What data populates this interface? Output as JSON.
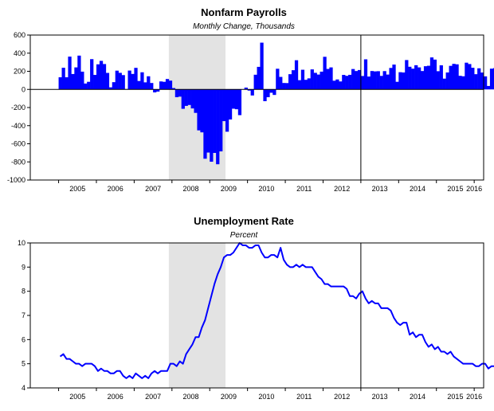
{
  "chart_data": [
    {
      "type": "bar",
      "title": "Nonfarm Payrolls",
      "subtitle": "Monthly Change, Thousands",
      "colors": {
        "bar": "#0000ff",
        "recession": "#e3e3e3",
        "axis": "#000000"
      },
      "x_start": "2005-01",
      "xlim": [
        2004.25,
        2016.25
      ],
      "ylim": [
        -1000,
        600
      ],
      "y_ticks": [
        600,
        400,
        200,
        0,
        -200,
        -400,
        -600,
        -800,
        -1000
      ],
      "x_tick_labels": [
        "2005",
        "2006",
        "2007",
        "2008",
        "2009",
        "2010",
        "2011",
        "2012",
        "2013",
        "2014",
        "2015",
        "2016"
      ],
      "recession": [
        2007.917,
        2009.417
      ],
      "vline": 2013.0,
      "values": [
        134,
        239,
        134,
        362,
        170,
        243,
        373,
        196,
        65,
        84,
        334,
        160,
        277,
        315,
        280,
        182,
        23,
        80,
        207,
        183,
        158,
        4,
        208,
        171,
        238,
        93,
        189,
        78,
        145,
        71,
        -33,
        -24,
        88,
        84,
        115,
        97,
        15,
        -86,
        -80,
        -214,
        -182,
        -172,
        -210,
        -259,
        -452,
        -474,
        -765,
        -697,
        -798,
        -701,
        -826,
        -684,
        -350,
        -467,
        -332,
        -213,
        -219,
        -284,
        2,
        20,
        -13,
        -67,
        162,
        249,
        516,
        -130,
        -86,
        -37,
        -61,
        228,
        138,
        71,
        70,
        168,
        212,
        322,
        102,
        217,
        106,
        122,
        221,
        183,
        164,
        196,
        360,
        226,
        243,
        96,
        110,
        88,
        160,
        150,
        161,
        225,
        203,
        214,
        148,
        332,
        142,
        203,
        199,
        201,
        149,
        202,
        164,
        237,
        274,
        84,
        190,
        187,
        324,
        250,
        229,
        267,
        243,
        203,
        256,
        261,
        353,
        329,
        201,
        266,
        119,
        187,
        260,
        282,
        277,
        150,
        145,
        295,
        280,
        239,
        168,
        233,
        186,
        144,
        38,
        229,
        235,
        176
      ]
    },
    {
      "type": "line",
      "title": "Unemployment Rate",
      "subtitle": "Percent",
      "colors": {
        "line": "#0000ff",
        "recession": "#e3e3e3",
        "axis": "#000000"
      },
      "x_start": "2005-01",
      "xlim": [
        2004.25,
        2016.25
      ],
      "ylim": [
        4,
        10
      ],
      "y_ticks": [
        10,
        9,
        8,
        7,
        6,
        5,
        4
      ],
      "x_tick_labels": [
        "2005",
        "2006",
        "2007",
        "2008",
        "2009",
        "2010",
        "2011",
        "2012",
        "2013",
        "2014",
        "2015",
        "2016"
      ],
      "recession": [
        2007.917,
        2009.417
      ],
      "vline": 2013.0,
      "values": [
        5.3,
        5.4,
        5.2,
        5.2,
        5.1,
        5.0,
        5.0,
        4.9,
        5.0,
        5.0,
        5.0,
        4.9,
        4.7,
        4.8,
        4.7,
        4.7,
        4.6,
        4.6,
        4.7,
        4.7,
        4.5,
        4.4,
        4.5,
        4.4,
        4.6,
        4.5,
        4.4,
        4.5,
        4.4,
        4.6,
        4.7,
        4.6,
        4.7,
        4.7,
        4.7,
        5.0,
        5.0,
        4.9,
        5.1,
        5.0,
        5.4,
        5.6,
        5.8,
        6.1,
        6.1,
        6.5,
        6.8,
        7.3,
        7.8,
        8.3,
        8.7,
        9.0,
        9.4,
        9.5,
        9.5,
        9.6,
        9.8,
        10.0,
        9.9,
        9.9,
        9.8,
        9.8,
        9.9,
        9.9,
        9.6,
        9.4,
        9.4,
        9.5,
        9.5,
        9.4,
        9.8,
        9.3,
        9.1,
        9.0,
        9.0,
        9.1,
        9.0,
        9.1,
        9.0,
        9.0,
        9.0,
        8.8,
        8.6,
        8.5,
        8.3,
        8.3,
        8.2,
        8.2,
        8.2,
        8.2,
        8.2,
        8.1,
        7.8,
        7.8,
        7.7,
        7.9,
        8.0,
        7.7,
        7.5,
        7.6,
        7.5,
        7.5,
        7.3,
        7.3,
        7.3,
        7.2,
        6.9,
        6.7,
        6.6,
        6.7,
        6.7,
        6.2,
        6.3,
        6.1,
        6.2,
        6.2,
        5.9,
        5.7,
        5.8,
        5.6,
        5.7,
        5.5,
        5.5,
        5.4,
        5.5,
        5.3,
        5.2,
        5.1,
        5.0,
        5.0,
        5.0,
        5.0,
        4.9,
        4.9,
        5.0,
        5.0,
        4.8,
        4.9,
        4.9,
        5.0
      ]
    }
  ]
}
